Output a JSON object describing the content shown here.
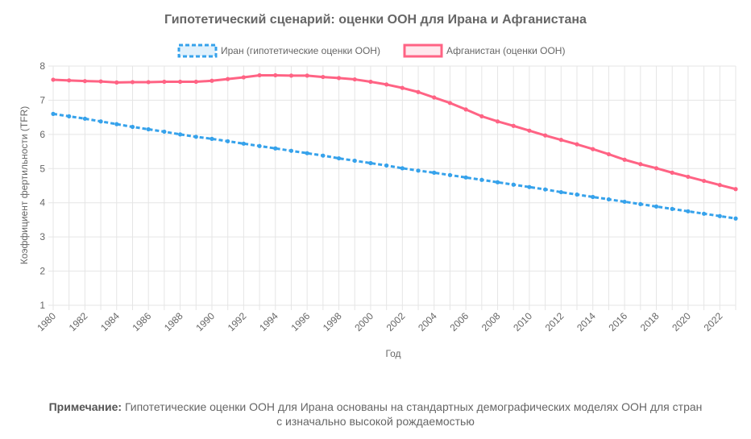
{
  "chart_data": {
    "type": "line",
    "title": "Гипотетический сценарий: оценки ООН для Ирана и Афганистана",
    "xlabel": "Год",
    "ylabel": "Коэффициент фертильности (TFR)",
    "ylim": [
      1,
      8
    ],
    "yticks": [
      1,
      2,
      3,
      4,
      5,
      6,
      7,
      8
    ],
    "grid": true,
    "legend_position": "top",
    "x": [
      1980,
      1981,
      1982,
      1983,
      1984,
      1985,
      1986,
      1987,
      1988,
      1989,
      1990,
      1991,
      1992,
      1993,
      1994,
      1995,
      1996,
      1997,
      1998,
      1999,
      2000,
      2001,
      2002,
      2003,
      2004,
      2005,
      2006,
      2007,
      2008,
      2009,
      2010,
      2011,
      2012,
      2013,
      2014,
      2015,
      2016,
      2017,
      2018,
      2019,
      2020,
      2021,
      2022,
      2023
    ],
    "xtick_labels": [
      "1980",
      "1982",
      "1984",
      "1986",
      "1988",
      "1990",
      "1992",
      "1994",
      "1996",
      "1998",
      "2000",
      "2002",
      "2004",
      "2006",
      "2008",
      "2010",
      "2012",
      "2014",
      "2016",
      "2018",
      "2020",
      "2022"
    ],
    "series": [
      {
        "name": "Иран (гипотетические оценки ООН)",
        "color": "#36a2eb",
        "dashed": true,
        "values": [
          6.6,
          6.53,
          6.46,
          6.38,
          6.3,
          6.22,
          6.15,
          6.08,
          6.0,
          5.93,
          5.87,
          5.8,
          5.73,
          5.66,
          5.59,
          5.52,
          5.45,
          5.38,
          5.3,
          5.23,
          5.16,
          5.09,
          5.01,
          4.94,
          4.88,
          4.81,
          4.74,
          4.67,
          4.6,
          4.53,
          4.46,
          4.39,
          4.31,
          4.24,
          4.17,
          4.1,
          4.03,
          3.96,
          3.89,
          3.82,
          3.75,
          3.68,
          3.61,
          3.54
        ]
      },
      {
        "name": "Афганистан (оценки ООН)",
        "color": "#ff6384",
        "dashed": false,
        "values": [
          7.6,
          7.58,
          7.56,
          7.55,
          7.52,
          7.53,
          7.53,
          7.54,
          7.54,
          7.54,
          7.57,
          7.62,
          7.67,
          7.73,
          7.73,
          7.72,
          7.72,
          7.68,
          7.65,
          7.61,
          7.54,
          7.46,
          7.36,
          7.24,
          7.08,
          6.92,
          6.73,
          6.53,
          6.38,
          6.25,
          6.11,
          5.97,
          5.84,
          5.71,
          5.57,
          5.42,
          5.26,
          5.13,
          5.01,
          4.88,
          4.76,
          4.64,
          4.52,
          4.4
        ]
      }
    ]
  },
  "note": {
    "label": "Примечание:",
    "line1": "Гипотетические оценки ООН для Ирана основаны на стандартных демографических моделях ООН для стран",
    "line2": "с изначально высокой рождаемостью"
  }
}
